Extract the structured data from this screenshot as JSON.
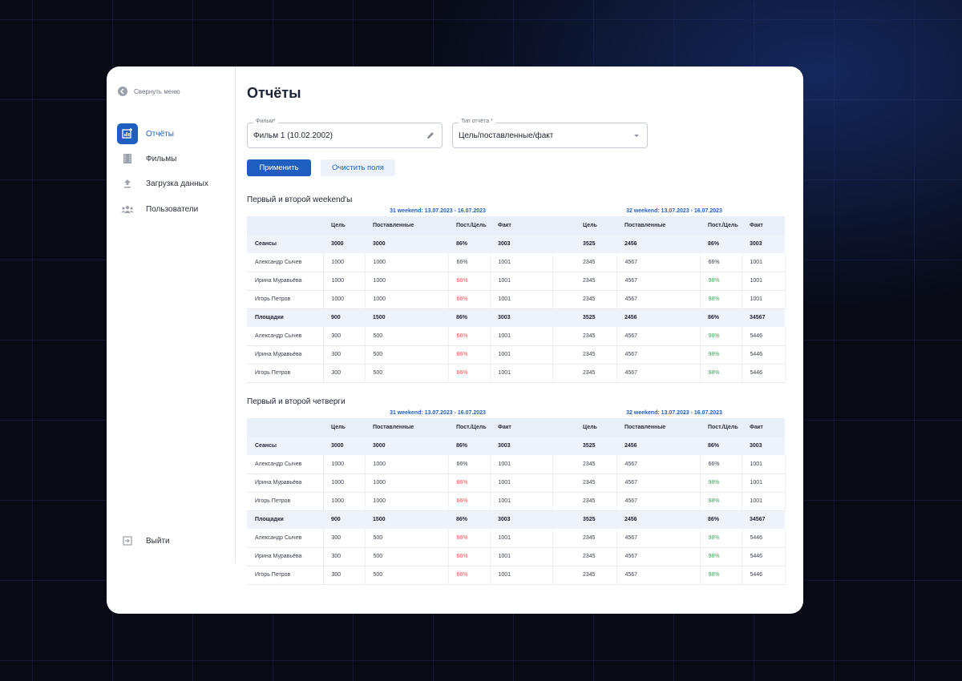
{
  "sidebar": {
    "collapse": "Свернуть меню",
    "items": [
      {
        "label": "Отчёты",
        "active": true
      },
      {
        "label": "Фильмы",
        "active": false
      },
      {
        "label": "Загрузка данных",
        "active": false
      },
      {
        "label": "Пользователи",
        "active": false
      }
    ],
    "logout": "Выйти"
  },
  "header": {
    "title": "Отчёты"
  },
  "filters": {
    "film": {
      "label": "Фильм*",
      "value": "Фильм 1 (10.02.2002)"
    },
    "report_type": {
      "label": "Тип отчёта *",
      "value": "Цель/поставленные/факт"
    },
    "apply": "Применить",
    "clear": "Очистить поля"
  },
  "sections": [
    {
      "title": "Первый и второй weekend'ы",
      "periods": [
        "31 weekend: 13.07.2023 - 16.07.2023",
        "32 weekend: 13.07.2023 - 16.07.2023"
      ],
      "columns": [
        "Цель",
        "Поставленные",
        "Пост./Цель",
        "Факт",
        "Цель",
        "Поставленные",
        "Пост./Цель",
        "Факт"
      ],
      "groups": [
        {
          "name": "Сеансы",
          "cells": [
            "3000",
            "3000",
            "86%",
            "3003",
            "3525",
            "2456",
            "86%",
            "3003"
          ],
          "rows": [
            {
              "name": "Александр Сычев",
              "cells": [
                "1000",
                "1000",
                "66%",
                "1001",
                "2345",
                "4567",
                "66%",
                "1001"
              ]
            },
            {
              "name": "Ирина Муравьёва",
              "cells": [
                "1000",
                "1000",
                {
                  "text": "66%",
                  "color": "#e5534b"
                },
                "1001",
                "2345",
                "4567",
                {
                  "text": "98%",
                  "color": "#3aa757"
                },
                "1001"
              ]
            },
            {
              "name": "Игорь Петров",
              "cells": [
                "1000",
                "1000",
                {
                  "text": "66%",
                  "color": "#e5534b"
                },
                "1001",
                "2345",
                "4567",
                {
                  "text": "98%",
                  "color": "#3aa757"
                },
                "1001"
              ]
            }
          ]
        },
        {
          "name": "Площадки",
          "cells": [
            "900",
            "1500",
            "86%",
            "3003",
            "3525",
            "2456",
            "86%",
            "34567"
          ],
          "rows": [
            {
              "name": "Александр Сычев",
              "cells": [
                "300",
                "500",
                {
                  "text": "66%",
                  "color": "#e5534b"
                },
                "1001",
                "2345",
                "4567",
                {
                  "text": "98%",
                  "color": "#3aa757"
                },
                "5446"
              ]
            },
            {
              "name": "Ирина Муравьёва",
              "cells": [
                "300",
                "500",
                {
                  "text": "66%",
                  "color": "#e5534b"
                },
                "1001",
                "2345",
                "4567",
                {
                  "text": "98%",
                  "color": "#3aa757"
                },
                "5446"
              ]
            },
            {
              "name": "Игорь Петров",
              "cells": [
                "300",
                "500",
                {
                  "text": "66%",
                  "color": "#e5534b"
                },
                "1001",
                "2345",
                "4567",
                {
                  "text": "98%",
                  "color": "#3aa757"
                },
                "5446"
              ]
            }
          ]
        }
      ]
    },
    {
      "title": "Первый и второй четверги",
      "periods": [
        "31 weekend: 13.07.2023 - 16.07.2023",
        "32 weekend: 13.07.2023 - 16.07.2023"
      ],
      "columns": [
        "Цель",
        "Поставленные",
        "Пост./Цель",
        "Факт",
        "Цель",
        "Поставленные",
        "Пост./Цель",
        "Факт"
      ],
      "groups": [
        {
          "name": "Сеансы",
          "cells": [
            "3000",
            "3000",
            "86%",
            "3003",
            "3525",
            "2456",
            "86%",
            "3003"
          ],
          "rows": [
            {
              "name": "Александр Сычев",
              "cells": [
                "1000",
                "1000",
                "66%",
                "1001",
                "2345",
                "4567",
                "66%",
                "1001"
              ]
            },
            {
              "name": "Ирина Муравьёва",
              "cells": [
                "1000",
                "1000",
                {
                  "text": "66%",
                  "color": "#e5534b"
                },
                "1001",
                "2345",
                "4567",
                {
                  "text": "98%",
                  "color": "#3aa757"
                },
                "1001"
              ]
            },
            {
              "name": "Игорь Петров",
              "cells": [
                "1000",
                "1000",
                {
                  "text": "66%",
                  "color": "#e5534b"
                },
                "1001",
                "2345",
                "4567",
                {
                  "text": "98%",
                  "color": "#3aa757"
                },
                "1001"
              ]
            }
          ]
        },
        {
          "name": "Площадки",
          "cells": [
            "900",
            "1500",
            "86%",
            "3003",
            "3525",
            "2456",
            "86%",
            "34567"
          ],
          "rows": [
            {
              "name": "Александр Сычев",
              "cells": [
                "300",
                "500",
                {
                  "text": "66%",
                  "color": "#e5534b"
                },
                "1001",
                "2345",
                "4567",
                {
                  "text": "98%",
                  "color": "#3aa757"
                },
                "5446"
              ]
            },
            {
              "name": "Ирина Муравьёва",
              "cells": [
                "300",
                "500",
                {
                  "text": "66%",
                  "color": "#e5534b"
                },
                "1001",
                "2345",
                "4567",
                {
                  "text": "98%",
                  "color": "#3aa757"
                },
                "5446"
              ]
            },
            {
              "name": "Игорь Петров",
              "cells": [
                "300",
                "500",
                {
                  "text": "66%",
                  "color": "#e5534b"
                },
                "1001",
                "2345",
                "4567",
                {
                  "text": "98%",
                  "color": "#3aa757"
                },
                "5446"
              ]
            }
          ]
        }
      ]
    }
  ]
}
